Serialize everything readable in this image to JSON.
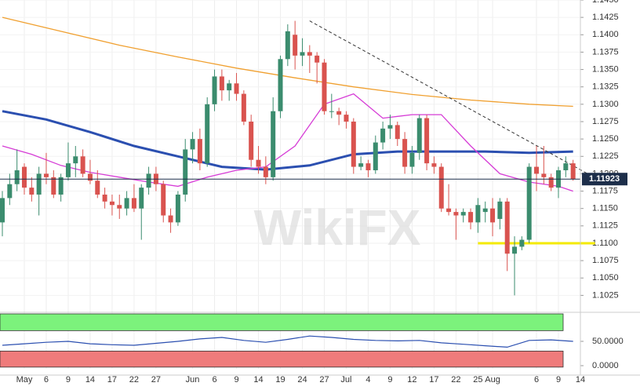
{
  "chart_data": {
    "type": "candlestick",
    "watermark": "WikiFX",
    "categories": [
      null,
      null,
      null,
      "May",
      null,
      null,
      "6",
      null,
      null,
      "9",
      null,
      null,
      "14",
      null,
      null,
      "17",
      null,
      null,
      "22",
      null,
      null,
      "27",
      null,
      null,
      null,
      null,
      "Jun",
      null,
      null,
      "6",
      null,
      null,
      "9",
      null,
      null,
      "14",
      null,
      null,
      "19",
      null,
      null,
      "24",
      null,
      null,
      "27",
      null,
      null,
      "Jul",
      null,
      null,
      "4",
      null,
      null,
      "9",
      null,
      null,
      "12",
      null,
      null,
      "17",
      null,
      null,
      "22",
      null,
      null,
      "25",
      null,
      "Aug",
      null,
      null,
      null,
      null,
      null,
      "6",
      null,
      null,
      "9",
      null,
      null,
      "14"
    ],
    "ohlc": [
      [
        1.113,
        1.1175,
        1.111,
        1.1165
      ],
      [
        1.1165,
        1.12,
        1.1155,
        1.1185
      ],
      [
        1.1185,
        1.1235,
        1.1175,
        1.1205
      ],
      [
        1.121,
        1.1215,
        1.117,
        1.118
      ],
      [
        1.118,
        1.1195,
        1.116,
        1.117
      ],
      [
        1.117,
        1.121,
        1.114,
        1.12
      ],
      [
        1.12,
        1.123,
        1.1185,
        1.1195
      ],
      [
        1.1195,
        1.1205,
        1.1165,
        1.117
      ],
      [
        1.117,
        1.12,
        1.116,
        1.1195
      ],
      [
        1.1195,
        1.1245,
        1.119,
        1.1215
      ],
      [
        1.1215,
        1.124,
        1.1195,
        1.1225
      ],
      [
        1.1225,
        1.1235,
        1.1195,
        1.12
      ],
      [
        1.12,
        1.122,
        1.1185,
        1.119
      ],
      [
        1.119,
        1.1205,
        1.1165,
        1.117
      ],
      [
        1.117,
        1.118,
        1.115,
        1.116
      ],
      [
        1.116,
        1.117,
        1.114,
        1.1155
      ],
      [
        1.1155,
        1.117,
        1.1135,
        1.115
      ],
      [
        1.115,
        1.1175,
        1.114,
        1.1165
      ],
      [
        1.1165,
        1.1185,
        1.1145,
        1.115
      ],
      [
        1.115,
        1.1185,
        1.1105,
        1.118
      ],
      [
        1.118,
        1.121,
        1.117,
        1.12
      ],
      [
        1.12,
        1.121,
        1.1175,
        1.1185
      ],
      [
        1.1185,
        1.119,
        1.113,
        1.114
      ],
      [
        1.114,
        1.115,
        1.1115,
        1.113
      ],
      [
        1.113,
        1.1175,
        1.1125,
        1.117
      ],
      [
        1.117,
        1.125,
        1.116,
        1.1235
      ],
      [
        1.1235,
        1.126,
        1.1215,
        1.125
      ],
      [
        1.125,
        1.1265,
        1.1205,
        1.1215
      ],
      [
        1.1215,
        1.131,
        1.121,
        1.13
      ],
      [
        1.13,
        1.135,
        1.129,
        1.134
      ],
      [
        1.134,
        1.135,
        1.1305,
        1.132
      ],
      [
        1.132,
        1.1335,
        1.1305,
        1.133
      ],
      [
        1.133,
        1.1345,
        1.1305,
        1.1315
      ],
      [
        1.1315,
        1.132,
        1.127,
        1.1275
      ],
      [
        1.1275,
        1.1285,
        1.121,
        1.122
      ],
      [
        1.122,
        1.124,
        1.12,
        1.121
      ],
      [
        1.121,
        1.1225,
        1.1185,
        1.1195
      ],
      [
        1.1195,
        1.131,
        1.119,
        1.129
      ],
      [
        1.129,
        1.137,
        1.128,
        1.1365
      ],
      [
        1.1365,
        1.1415,
        1.1355,
        1.1405
      ],
      [
        1.14,
        1.142,
        1.135,
        1.137
      ],
      [
        1.137,
        1.1395,
        1.1355,
        1.1375
      ],
      [
        1.1375,
        1.1385,
        1.1345,
        1.137
      ],
      [
        1.137,
        1.1375,
        1.133,
        1.136
      ],
      [
        1.136,
        1.1365,
        1.1285,
        1.129
      ],
      [
        1.129,
        1.1315,
        1.128,
        1.129
      ],
      [
        1.129,
        1.1295,
        1.127,
        1.1285
      ],
      [
        1.1285,
        1.129,
        1.1265,
        1.1275
      ],
      [
        1.1275,
        1.128,
        1.12,
        1.121
      ],
      [
        1.121,
        1.1225,
        1.1205,
        1.1215
      ],
      [
        1.1215,
        1.122,
        1.1195,
        1.1205
      ],
      [
        1.1205,
        1.1255,
        1.12,
        1.1245
      ],
      [
        1.1245,
        1.1275,
        1.1235,
        1.1265
      ],
      [
        1.1265,
        1.1285,
        1.125,
        1.127
      ],
      [
        1.127,
        1.1275,
        1.124,
        1.125
      ],
      [
        1.125,
        1.126,
        1.12,
        1.121
      ],
      [
        1.121,
        1.124,
        1.12,
        1.123
      ],
      [
        1.123,
        1.1285,
        1.122,
        1.128
      ],
      [
        1.128,
        1.1285,
        1.1205,
        1.1215
      ],
      [
        1.1215,
        1.1225,
        1.12,
        1.121
      ],
      [
        1.121,
        1.1215,
        1.1145,
        1.115
      ],
      [
        1.115,
        1.1185,
        1.114,
        1.1145
      ],
      [
        1.1145,
        1.115,
        1.1105,
        1.114
      ],
      [
        1.114,
        1.115,
        1.113,
        1.1145
      ],
      [
        1.1145,
        1.115,
        1.112,
        1.113
      ],
      [
        1.113,
        1.1165,
        1.1115,
        1.1155
      ],
      [
        1.1145,
        1.116,
        1.113,
        1.115
      ],
      [
        1.115,
        1.1165,
        1.111,
        1.113
      ],
      [
        1.1135,
        1.1165,
        1.112,
        1.116
      ],
      [
        1.116,
        1.1165,
        1.106,
        1.1085
      ],
      [
        1.1085,
        1.111,
        1.1025,
        1.1095
      ],
      [
        1.1095,
        1.111,
        1.109,
        1.1105
      ],
      [
        1.1105,
        1.1215,
        1.11,
        1.121
      ],
      [
        1.121,
        1.124,
        1.1175,
        1.12
      ],
      [
        1.12,
        1.124,
        1.1185,
        1.1195
      ],
      [
        1.1195,
        1.12,
        1.1175,
        1.118
      ],
      [
        1.118,
        1.121,
        1.1165,
        1.1205
      ],
      [
        1.1205,
        1.1225,
        1.1195,
        1.1215
      ],
      [
        1.1215,
        1.122,
        1.119,
        1.1192
      ]
    ],
    "up_color": "#3b8c6e",
    "down_color": "#d9534f",
    "ylim": [
      1.1004,
      1.145
    ],
    "yticks": [
      {
        "value": 1.145,
        "label": "1.1450"
      },
      1.1425,
      {
        "value": 1.14,
        "label": "1.1400"
      },
      1.1375,
      {
        "value": 1.135,
        "label": "1.1350"
      },
      1.1325,
      {
        "value": 1.13,
        "label": "1.1300"
      },
      1.1275,
      {
        "value": 1.125,
        "label": "1.1250"
      },
      1.1225,
      {
        "value": 1.12,
        "label": "1.1200"
      },
      1.1175,
      {
        "value": 1.115,
        "label": "1.1150"
      },
      1.1125,
      {
        "value": 1.11,
        "label": "1.1100"
      },
      1.1075,
      {
        "value": 1.105,
        "label": "1.1050"
      },
      1.1025
    ],
    "grid": true,
    "lines": [
      {
        "color": "#f0a030",
        "width": 1.3,
        "x": [
          0,
          8,
          16,
          24,
          32,
          40,
          48,
          56,
          64,
          72,
          78
        ],
        "values": [
          1.1425,
          1.1405,
          1.1385,
          1.1368,
          1.1352,
          1.1338,
          1.1325,
          1.1314,
          1.1306,
          1.13,
          1.1297
        ]
      },
      {
        "color": "#2b4fb0",
        "width": 3,
        "x": [
          0,
          6,
          12,
          18,
          24,
          30,
          36,
          42,
          48,
          54,
          60,
          66,
          72,
          78
        ],
        "values": [
          1.129,
          1.1278,
          1.126,
          1.124,
          1.1225,
          1.121,
          1.1206,
          1.1212,
          1.1228,
          1.1232,
          1.1232,
          1.1232,
          1.123,
          1.1232
        ]
      },
      {
        "color": "#d63cd6",
        "width": 1.3,
        "x": [
          0,
          4,
          8,
          12,
          16,
          20,
          24,
          28,
          32,
          36,
          40,
          44,
          48,
          52,
          56,
          60,
          64,
          68,
          72,
          76,
          78
        ],
        "values": [
          1.124,
          1.1228,
          1.1212,
          1.1202,
          1.1195,
          1.1188,
          1.1182,
          1.1195,
          1.1205,
          1.121,
          1.124,
          1.13,
          1.1315,
          1.128,
          1.1285,
          1.1285,
          1.124,
          1.12,
          1.1188,
          1.1182,
          1.1175
        ]
      }
    ],
    "trendline": {
      "color": "#333",
      "x": [
        42,
        80
      ],
      "values": [
        1.142,
        1.12
      ]
    },
    "support": {
      "color": "#f4ea00",
      "x": [
        65,
        81
      ],
      "values": [
        1.11,
        1.11
      ]
    },
    "last_price": 1.11923,
    "oscillator": {
      "ylim": [
        -6.5,
        106.5
      ],
      "yticks": [
        {
          "value": 50,
          "label": "50.0000"
        },
        {
          "value": 0,
          "label": "0.0000"
        }
      ],
      "bands": [
        {
          "from": 72,
          "to": 106.5,
          "color": "#7cf27c"
        },
        {
          "from": -3,
          "to": 30,
          "color": "#ef7b7b"
        }
      ],
      "color": "#2b4fb0",
      "x": [
        0,
        3,
        6,
        9,
        12,
        15,
        18,
        21,
        24,
        27,
        30,
        33,
        36,
        39,
        42,
        45,
        48,
        51,
        54,
        57,
        60,
        63,
        66,
        69,
        72,
        75,
        78
      ],
      "values": [
        42,
        45,
        48,
        50,
        45,
        43,
        42,
        46,
        50,
        55,
        58,
        52,
        48,
        54,
        61,
        58,
        54,
        52,
        51,
        52,
        47,
        44,
        41,
        38,
        52,
        53,
        50
      ]
    }
  }
}
